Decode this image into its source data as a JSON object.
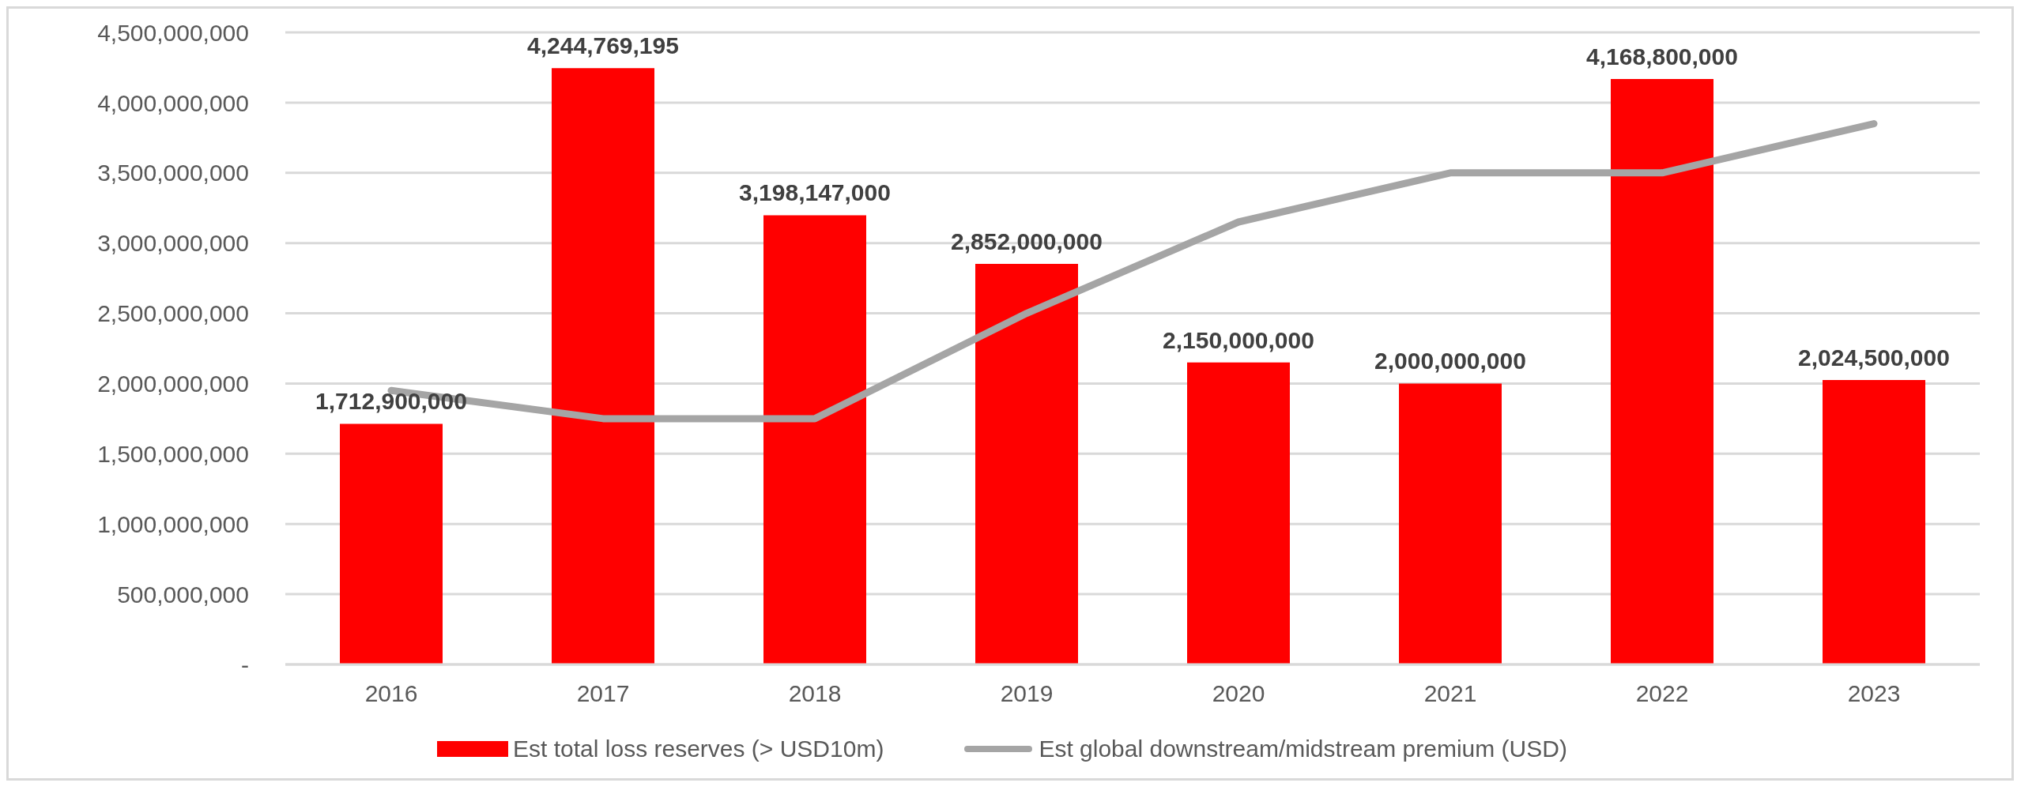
{
  "chart_data": {
    "type": "bar",
    "categories": [
      "2016",
      "2017",
      "2018",
      "2019",
      "2020",
      "2021",
      "2022",
      "2023"
    ],
    "series": [
      {
        "name": "Est total loss reserves (> USD10m)",
        "color": "#ff0000",
        "values": [
          1712900000,
          4244769195,
          3198147000,
          2852000000,
          2150000000,
          2000000000,
          4168800000,
          2024500000
        ],
        "value_labels": [
          "1,712,900,000",
          "4,244,769,195",
          "3,198,147,000",
          "2,852,000,000",
          "2,150,000,000",
          "2,000,000,000",
          "4,168,800,000",
          "2,024,500,000"
        ]
      },
      {
        "name": "Est global downstream/midstream premium (USD)",
        "type": "line",
        "color": "#a5a5a5",
        "values": [
          1950000000,
          1750000000,
          1750000000,
          2500000000,
          3150000000,
          3500000000,
          3500000000,
          3850000000
        ]
      }
    ],
    "ylim": [
      0,
      4500000000
    ],
    "yticks": [
      {
        "value": 0,
        "label": "-"
      },
      {
        "value": 500000000,
        "label": "500,000,000"
      },
      {
        "value": 1000000000,
        "label": "1,000,000,000"
      },
      {
        "value": 1500000000,
        "label": "1,500,000,000"
      },
      {
        "value": 2000000000,
        "label": "2,000,000,000"
      },
      {
        "value": 2500000000,
        "label": "2,500,000,000"
      },
      {
        "value": 3000000000,
        "label": "3,000,000,000"
      },
      {
        "value": 3500000000,
        "label": "3,500,000,000"
      },
      {
        "value": 4000000000,
        "label": "4,000,000,000"
      },
      {
        "value": 4500000000,
        "label": "4,500,000,000"
      }
    ],
    "grid": "y",
    "legend": "bottom",
    "marker": "none"
  }
}
